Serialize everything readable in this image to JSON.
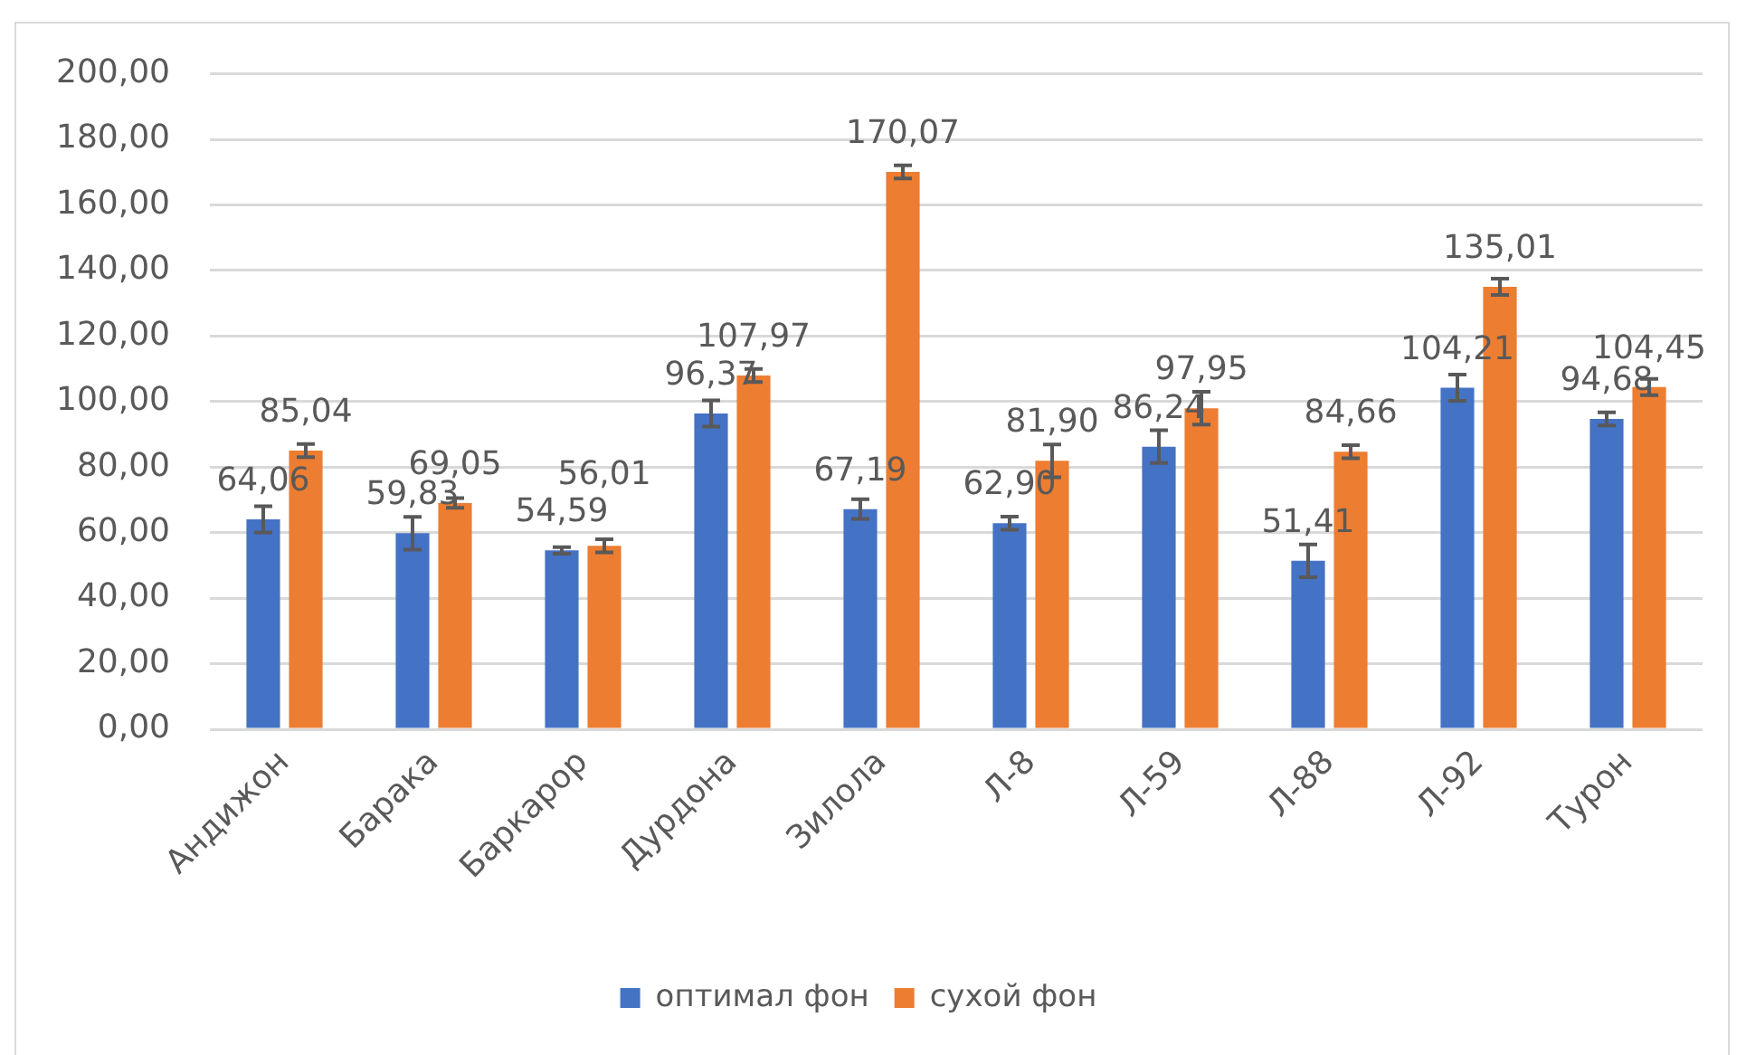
{
  "chart_data": {
    "type": "bar",
    "categories": [
      "Андижон",
      "Барака",
      "Баркарор",
      "Дурдона",
      "Зилола",
      "Л-8",
      "Л-59",
      "Л-88",
      "Л-92",
      "Турон"
    ],
    "series": [
      {
        "name": "оптимал фон",
        "color": "#4472c4",
        "values": [
          64.06,
          59.83,
          54.59,
          96.37,
          67.19,
          62.9,
          86.24,
          51.41,
          104.21,
          94.68
        ],
        "errors": [
          4,
          5,
          1,
          4,
          3,
          2,
          5,
          5,
          4,
          2
        ],
        "value_labels": [
          "64,06",
          "59,83",
          "54,59",
          "96,37",
          "67,19",
          "62,90",
          "86,24",
          "51,41",
          "104,21",
          "94,68"
        ]
      },
      {
        "name": "сухой фон",
        "color": "#ed7d31",
        "values": [
          85.04,
          69.05,
          56.01,
          107.97,
          170.07,
          81.9,
          97.95,
          84.66,
          135.01,
          104.45
        ],
        "errors": [
          2,
          1.5,
          2,
          2,
          2,
          5,
          5,
          2,
          2.5,
          2.5
        ],
        "value_labels": [
          "85,04",
          "69,05",
          "56,01",
          "107,97",
          "170,07",
          "81,90",
          "97,95",
          "84,66",
          "135,01",
          "104,45"
        ]
      }
    ],
    "ylim": [
      0,
      200
    ],
    "yticks": [
      {
        "value": 0,
        "label": "0,00"
      },
      {
        "value": 20,
        "label": "20,00"
      },
      {
        "value": 40,
        "label": "40,00"
      },
      {
        "value": 60,
        "label": "60,00"
      },
      {
        "value": 80,
        "label": "80,00"
      },
      {
        "value": 100,
        "label": "100,00"
      },
      {
        "value": 120,
        "label": "120,00"
      },
      {
        "value": 140,
        "label": "140,00"
      },
      {
        "value": 160,
        "label": "160,00"
      },
      {
        "value": 180,
        "label": "180,00"
      },
      {
        "value": 200,
        "label": "200,00"
      }
    ],
    "grid": "y",
    "legend": "bottom"
  }
}
